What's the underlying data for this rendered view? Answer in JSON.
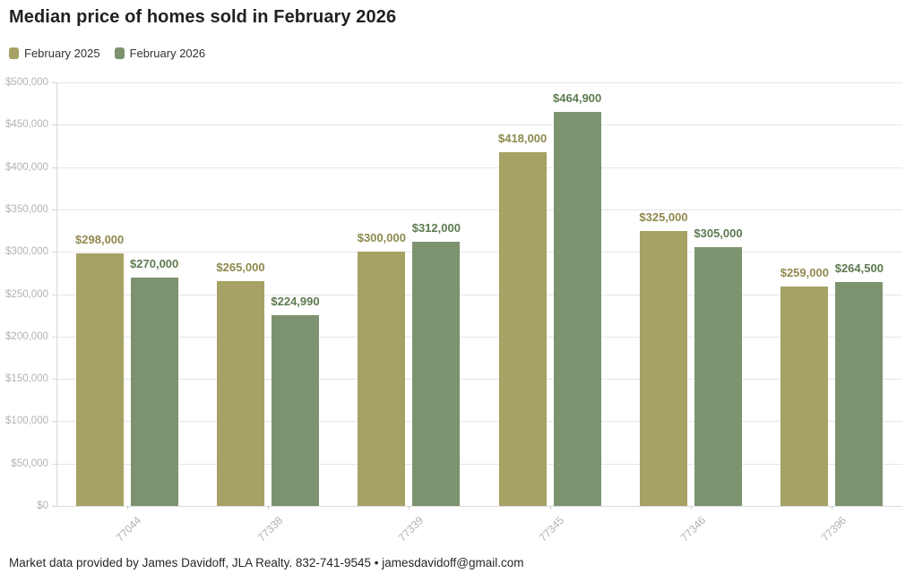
{
  "page": {
    "background": "#ffffff"
  },
  "footer": {
    "text": "Market data provided by James Davidoff, JLA Realty. 832-741-9545 • jamesdavidoff@gmail.com"
  },
  "chart_data": {
    "type": "bar",
    "title": "Median price of homes sold in February 2026",
    "categories": [
      "77044",
      "77338",
      "77339",
      "77345",
      "77346",
      "77396"
    ],
    "series": [
      {
        "name": "February 2025",
        "color": "#a6a164",
        "label_color": "#8e894e",
        "values": [
          298000,
          265000,
          300000,
          418000,
          325000,
          259000
        ],
        "value_labels": [
          "$298,000",
          "$265,000",
          "$300,000",
          "$418,000",
          "$325,000",
          "$259,000"
        ]
      },
      {
        "name": "February 2026",
        "color": "#7d9370",
        "label_color": "#5d7a50",
        "values": [
          270000,
          224990,
          312000,
          464900,
          305000,
          264500
        ],
        "value_labels": [
          "$270,000",
          "$224,990",
          "$312,000",
          "$464,900",
          "$305,000",
          "$264,500"
        ]
      }
    ],
    "xlabel": "",
    "ylabel": "",
    "ylim": [
      0,
      500000
    ],
    "ytick_step": 50000,
    "ytick_labels": [
      "$0",
      "$50,000",
      "$100,000",
      "$150,000",
      "$200,000",
      "$250,000",
      "$300,000",
      "$350,000",
      "$400,000",
      "$450,000",
      "$500,000"
    ],
    "grid": true,
    "legend_position": "top-left",
    "axis_colors": {
      "tick_label": "#b3b3b3",
      "gridline": "#e6e6e6",
      "axis_line": "#d8d8d8"
    }
  }
}
